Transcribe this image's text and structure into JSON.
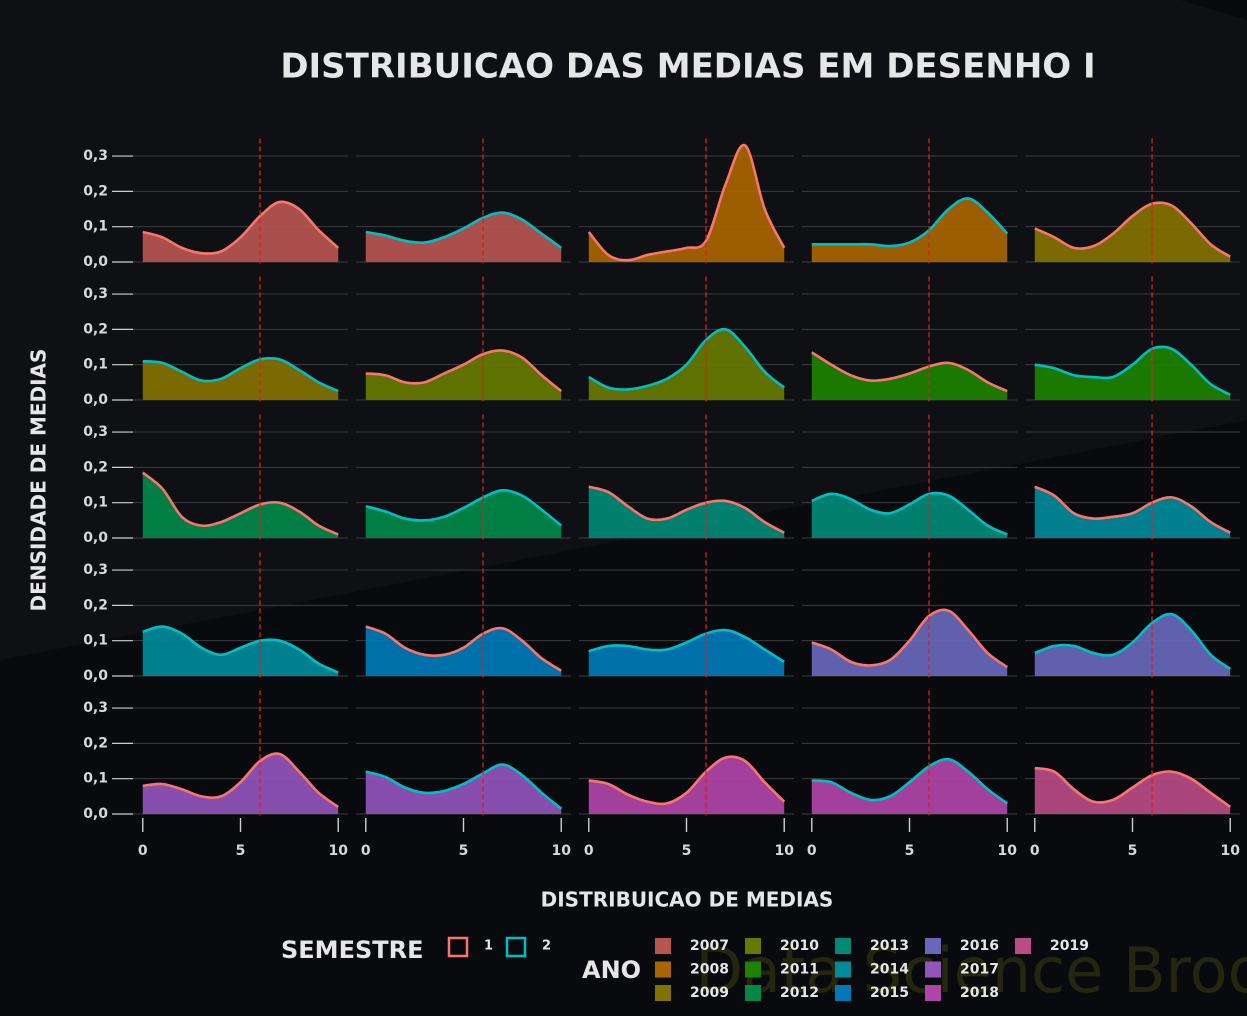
{
  "chart_data": {
    "type": "density",
    "title": "DISTRIBUICAO DAS MEDIAS EM DESENHO I",
    "xlabel": "DISTRIBUICAO DE MEDIAS",
    "ylabel": "DENSIDADE DE MEDIAS",
    "watermark": "Data Science Broon",
    "x": [
      0,
      1,
      2,
      3,
      4,
      5,
      6,
      7,
      8,
      9,
      10
    ],
    "xlim": [
      -0.5,
      10.5
    ],
    "ylim": [
      0,
      0.35
    ],
    "xticks": [
      0,
      5,
      10
    ],
    "yticks": [
      {
        "value": 0,
        "label": "0,0"
      },
      {
        "value": 0.1,
        "label": "0,1"
      },
      {
        "value": 0.2,
        "label": "0,2"
      },
      {
        "value": 0.3,
        "label": "0,3"
      }
    ],
    "vline": 6,
    "vline_color": "#d42424",
    "grid": true,
    "legend_semestre": {
      "title": "SEMESTRE",
      "items": [
        {
          "label": "1",
          "color": "#f8766d"
        },
        {
          "label": "2",
          "color": "#00bfc4"
        }
      ]
    },
    "legend_ano": {
      "title": "ANO",
      "items": [
        {
          "label": "2007",
          "color": "#b85551"
        },
        {
          "label": "2008",
          "color": "#a86500"
        },
        {
          "label": "2009",
          "color": "#837200"
        },
        {
          "label": "2010",
          "color": "#667a00"
        },
        {
          "label": "2011",
          "color": "#1c8200"
        },
        {
          "label": "2012",
          "color": "#008848"
        },
        {
          "label": "2013",
          "color": "#008a76"
        },
        {
          "label": "2014",
          "color": "#008a9a"
        },
        {
          "label": "2015",
          "color": "#0079b8"
        },
        {
          "label": "2016",
          "color": "#6868bb"
        },
        {
          "label": "2017",
          "color": "#9455bb"
        },
        {
          "label": "2018",
          "color": "#b045a8"
        },
        {
          "label": "2019",
          "color": "#b84c84"
        }
      ]
    },
    "panels": [
      {
        "ano": "2007",
        "semestre": "1",
        "values": [
          0.085,
          0.07,
          0.04,
          0.025,
          0.03,
          0.07,
          0.13,
          0.17,
          0.15,
          0.09,
          0.04
        ]
      },
      {
        "ano": "2007",
        "semestre": "2",
        "values": [
          0.085,
          0.075,
          0.06,
          0.055,
          0.07,
          0.095,
          0.125,
          0.14,
          0.12,
          0.08,
          0.04
        ]
      },
      {
        "ano": "2008",
        "semestre": "1",
        "values": [
          0.085,
          0.02,
          0.005,
          0.02,
          0.03,
          0.04,
          0.06,
          0.22,
          0.33,
          0.15,
          0.04
        ]
      },
      {
        "ano": "2008",
        "semestre": "2",
        "values": [
          0.05,
          0.05,
          0.05,
          0.05,
          0.045,
          0.055,
          0.09,
          0.15,
          0.18,
          0.14,
          0.08
        ]
      },
      {
        "ano": "2009",
        "semestre": "1",
        "values": [
          0.095,
          0.07,
          0.04,
          0.045,
          0.08,
          0.13,
          0.165,
          0.16,
          0.11,
          0.05,
          0.015
        ]
      },
      {
        "ano": "2009",
        "semestre": "2",
        "values": [
          0.11,
          0.105,
          0.08,
          0.055,
          0.06,
          0.09,
          0.115,
          0.115,
          0.085,
          0.05,
          0.025
        ]
      },
      {
        "ano": "2010",
        "semestre": "1",
        "values": [
          0.075,
          0.07,
          0.05,
          0.05,
          0.075,
          0.1,
          0.13,
          0.14,
          0.12,
          0.07,
          0.025
        ]
      },
      {
        "ano": "2010",
        "semestre": "2",
        "values": [
          0.065,
          0.035,
          0.03,
          0.04,
          0.06,
          0.1,
          0.17,
          0.2,
          0.15,
          0.08,
          0.035
        ]
      },
      {
        "ano": "2011",
        "semestre": "1",
        "values": [
          0.135,
          0.1,
          0.07,
          0.055,
          0.06,
          0.075,
          0.095,
          0.105,
          0.085,
          0.05,
          0.025
        ]
      },
      {
        "ano": "2011",
        "semestre": "2",
        "values": [
          0.1,
          0.09,
          0.07,
          0.065,
          0.065,
          0.1,
          0.145,
          0.145,
          0.1,
          0.045,
          0.015
        ]
      },
      {
        "ano": "2012",
        "semestre": "1",
        "values": [
          0.185,
          0.14,
          0.06,
          0.035,
          0.045,
          0.07,
          0.095,
          0.1,
          0.075,
          0.035,
          0.01
        ]
      },
      {
        "ano": "2012",
        "semestre": "2",
        "values": [
          0.09,
          0.075,
          0.055,
          0.05,
          0.06,
          0.085,
          0.115,
          0.135,
          0.12,
          0.08,
          0.035
        ]
      },
      {
        "ano": "2013",
        "semestre": "1",
        "values": [
          0.145,
          0.13,
          0.09,
          0.055,
          0.055,
          0.08,
          0.1,
          0.105,
          0.085,
          0.045,
          0.015
        ]
      },
      {
        "ano": "2013",
        "semestre": "2",
        "values": [
          0.105,
          0.125,
          0.11,
          0.08,
          0.07,
          0.095,
          0.125,
          0.12,
          0.08,
          0.035,
          0.01
        ]
      },
      {
        "ano": "2014",
        "semestre": "1",
        "values": [
          0.145,
          0.12,
          0.07,
          0.055,
          0.06,
          0.07,
          0.1,
          0.115,
          0.09,
          0.045,
          0.015
        ]
      },
      {
        "ano": "2014",
        "semestre": "2",
        "values": [
          0.125,
          0.14,
          0.12,
          0.08,
          0.06,
          0.08,
          0.1,
          0.1,
          0.075,
          0.035,
          0.01
        ]
      },
      {
        "ano": "2015",
        "semestre": "1",
        "values": [
          0.14,
          0.12,
          0.08,
          0.06,
          0.06,
          0.08,
          0.12,
          0.135,
          0.1,
          0.05,
          0.015
        ]
      },
      {
        "ano": "2015",
        "semestre": "2",
        "values": [
          0.07,
          0.085,
          0.085,
          0.075,
          0.075,
          0.095,
          0.12,
          0.13,
          0.11,
          0.075,
          0.04
        ]
      },
      {
        "ano": "2016",
        "semestre": "1",
        "values": [
          0.095,
          0.075,
          0.04,
          0.03,
          0.045,
          0.1,
          0.17,
          0.185,
          0.13,
          0.065,
          0.025
        ]
      },
      {
        "ano": "2016",
        "semestre": "2",
        "values": [
          0.065,
          0.085,
          0.085,
          0.065,
          0.06,
          0.095,
          0.15,
          0.175,
          0.13,
          0.06,
          0.02
        ]
      },
      {
        "ano": "2017",
        "semestre": "1",
        "values": [
          0.08,
          0.085,
          0.07,
          0.05,
          0.05,
          0.09,
          0.15,
          0.17,
          0.12,
          0.06,
          0.02
        ]
      },
      {
        "ano": "2017",
        "semestre": "2",
        "values": [
          0.12,
          0.105,
          0.075,
          0.06,
          0.065,
          0.085,
          0.115,
          0.14,
          0.11,
          0.06,
          0.015
        ]
      },
      {
        "ano": "2018",
        "semestre": "1",
        "values": [
          0.095,
          0.085,
          0.055,
          0.035,
          0.03,
          0.06,
          0.12,
          0.16,
          0.15,
          0.09,
          0.035
        ]
      },
      {
        "ano": "2018",
        "semestre": "2",
        "values": [
          0.095,
          0.09,
          0.06,
          0.04,
          0.05,
          0.09,
          0.135,
          0.155,
          0.12,
          0.07,
          0.03
        ]
      },
      {
        "ano": "2019",
        "semestre": "1",
        "values": [
          0.13,
          0.12,
          0.07,
          0.035,
          0.04,
          0.075,
          0.11,
          0.12,
          0.1,
          0.06,
          0.02
        ]
      }
    ]
  }
}
